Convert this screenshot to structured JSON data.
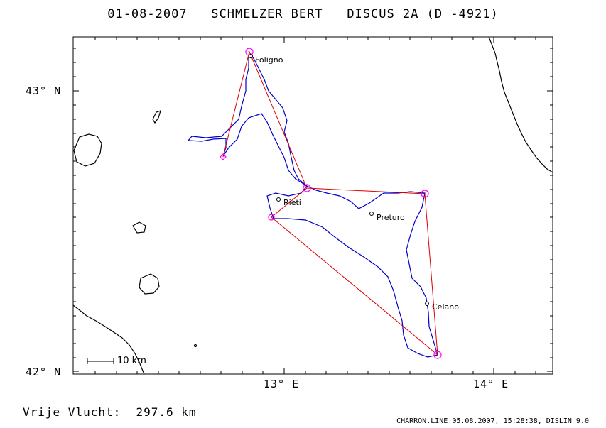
{
  "header": {
    "date": "01-08-2007",
    "pilot": "SCHMELZER BERT",
    "glider": "DISCUS 2A (D -4921)"
  },
  "axes": {
    "lat_labels": [
      "43° N",
      "42° N"
    ],
    "lon_labels": [
      "13° E",
      "14° E"
    ]
  },
  "scale_bar": {
    "label": "10 km"
  },
  "cities": [
    "Foligno",
    "Rieti",
    "Preturo",
    "Celano"
  ],
  "footer": {
    "result": "Vrije Vlucht:  297.6 km",
    "credit": "CHARRON.LINE 05.08.2007, 15:28:38, DISLIN 9.0"
  },
  "colors": {
    "track": "#0000cc",
    "task": "#dd0000",
    "turnpoint": "#ff00ff",
    "coast": "#000000"
  }
}
